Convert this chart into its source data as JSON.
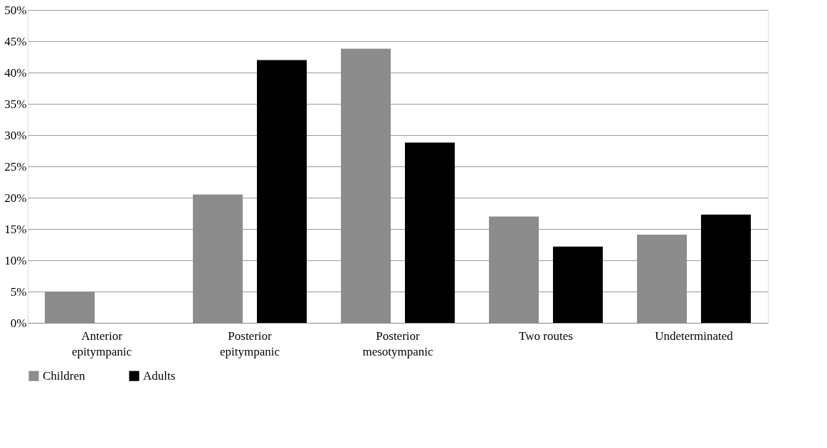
{
  "chart_data": {
    "type": "bar",
    "categories": [
      "Anterior\nepitympanic",
      "Posterior\nepitympanic",
      "Posterior\nmesotympanic",
      "Two routes",
      "Undeterminated"
    ],
    "series": [
      {
        "name": "Children",
        "color": "#8c8c8c",
        "values": [
          5,
          20.5,
          43.8,
          17,
          14.1
        ]
      },
      {
        "name": "Adults",
        "color": "#000000",
        "values": [
          0,
          42,
          28.8,
          12.2,
          17.3
        ]
      }
    ],
    "ylim": [
      0,
      50
    ],
    "yticks": [
      {
        "value": 0,
        "label": "0%"
      },
      {
        "value": 5,
        "label": "5%"
      },
      {
        "value": 10,
        "label": "10%"
      },
      {
        "value": 15,
        "label": "15%"
      },
      {
        "value": 20,
        "label": "20%"
      },
      {
        "value": 25,
        "label": "25%"
      },
      {
        "value": 30,
        "label": "30%"
      },
      {
        "value": 35,
        "label": "35%"
      },
      {
        "value": 40,
        "label": "40%"
      },
      {
        "value": 45,
        "label": "45%"
      },
      {
        "value": 50,
        "label": "50%"
      }
    ],
    "grid": "y",
    "legend": "bottom"
  }
}
